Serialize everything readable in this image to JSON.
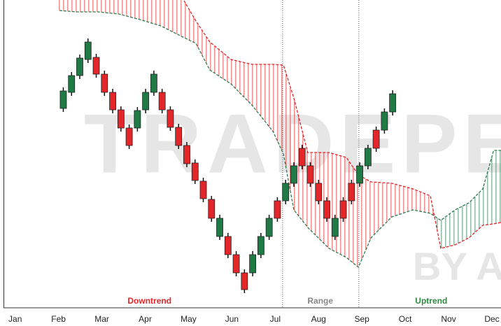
{
  "chart_data": {
    "type": "candlestick",
    "xlim": [
      -0.27,
      11.21
    ],
    "ylim": [
      0,
      440
    ],
    "xticks": [
      {
        "value": 0,
        "label": "Jan"
      },
      {
        "value": 1,
        "label": "Feb"
      },
      {
        "value": 2,
        "label": "Mar"
      },
      {
        "value": 3,
        "label": "Apr"
      },
      {
        "value": 4,
        "label": "May"
      },
      {
        "value": 5,
        "label": "Jun"
      },
      {
        "value": 6,
        "label": "Jul"
      },
      {
        "value": 7,
        "label": "Aug"
      },
      {
        "value": 8,
        "label": "Sep"
      },
      {
        "value": 9,
        "label": "Oct"
      },
      {
        "value": 10,
        "label": "Nov"
      },
      {
        "value": 11,
        "label": "Dec"
      }
    ],
    "up_color": "#1f7a45",
    "down_color": "#e3262a",
    "x": [
      1.11,
      1.3,
      1.49,
      1.68,
      1.87,
      2.06,
      2.25,
      2.44,
      2.63,
      2.82,
      3.01,
      3.2,
      3.39,
      3.58,
      3.77,
      3.96,
      4.15,
      4.34,
      4.53,
      4.72,
      4.91,
      5.1,
      5.29,
      5.48,
      5.67,
      5.86,
      6.05,
      6.24,
      6.43,
      6.62,
      6.81,
      7.0,
      7.19,
      7.38,
      7.57,
      7.76,
      7.95,
      8.14,
      8.33,
      8.52,
      8.71
    ],
    "open": [
      285,
      308,
      332,
      355,
      358,
      334,
      308,
      283,
      257,
      257,
      283,
      308,
      308,
      283,
      258,
      232,
      207,
      181,
      155,
      102,
      102,
      76,
      50,
      50,
      76,
      102,
      153,
      153,
      178,
      228,
      203,
      178,
      153,
      102,
      153,
      178,
      178,
      203,
      254,
      254,
      280
    ],
    "close": [
      310,
      332,
      357,
      380,
      334,
      308,
      283,
      257,
      232,
      282,
      308,
      334,
      283,
      258,
      232,
      206,
      182,
      156,
      128,
      128,
      76,
      50,
      26,
      76,
      102,
      128,
      128,
      178,
      203,
      203,
      178,
      153,
      128,
      128,
      128,
      153,
      203,
      228,
      228,
      280,
      306
    ],
    "high": [
      315,
      337,
      362,
      385,
      363,
      339,
      313,
      288,
      262,
      287,
      313,
      339,
      313,
      288,
      263,
      237,
      212,
      186,
      160,
      133,
      107,
      81,
      55,
      81,
      107,
      133,
      158,
      183,
      208,
      233,
      208,
      183,
      158,
      133,
      158,
      183,
      208,
      233,
      259,
      285,
      311
    ],
    "low": [
      280,
      303,
      327,
      350,
      329,
      303,
      278,
      252,
      227,
      252,
      278,
      303,
      278,
      253,
      227,
      201,
      177,
      151,
      123,
      97,
      71,
      45,
      21,
      45,
      71,
      97,
      123,
      148,
      173,
      198,
      173,
      148,
      123,
      97,
      123,
      148,
      173,
      198,
      223,
      249,
      275
    ],
    "cloud": {
      "x": [
        1.02,
        1.42,
        1.91,
        2.39,
        2.88,
        3.36,
        3.84,
        4.17,
        4.49,
        4.98,
        5.46,
        5.95,
        6.19,
        6.43,
        6.75,
        7.24,
        7.64,
        7.92,
        8.21,
        8.69,
        9.18,
        9.58,
        9.82,
        10.15,
        10.47,
        10.79,
        11.04,
        11.21
      ],
      "span_a": {
        "color": "#e3262a",
        "values": [
          480,
          480,
          475,
          470,
          465,
          455,
          445,
          410,
          380,
          355,
          348,
          348,
          347,
          300,
          222,
          222,
          215,
          190,
          180,
          178,
          170,
          160,
          85,
          90,
          100,
          118,
          120,
          122
        ]
      },
      "span_b": {
        "color": "#2e7d4f",
        "values": [
          425,
          423,
          423,
          420,
          412,
          403,
          388,
          378,
          340,
          320,
          290,
          252,
          220,
          140,
          115,
          85,
          72,
          58,
          100,
          130,
          140,
          135,
          125,
          140,
          150,
          170,
          225,
          225
        ]
      }
    },
    "vlines": [
      6.17,
      7.93
    ],
    "annotations": [
      {
        "text": "Downtrend",
        "x": 3.1,
        "color": "#e3262a"
      },
      {
        "text": "Range",
        "x": 7.04,
        "color": "#888888"
      },
      {
        "text": "Uptrend",
        "x": 9.6,
        "color": "#2e8b3f"
      }
    ],
    "watermark": [
      "TRADEPE",
      "BY AVI"
    ]
  }
}
